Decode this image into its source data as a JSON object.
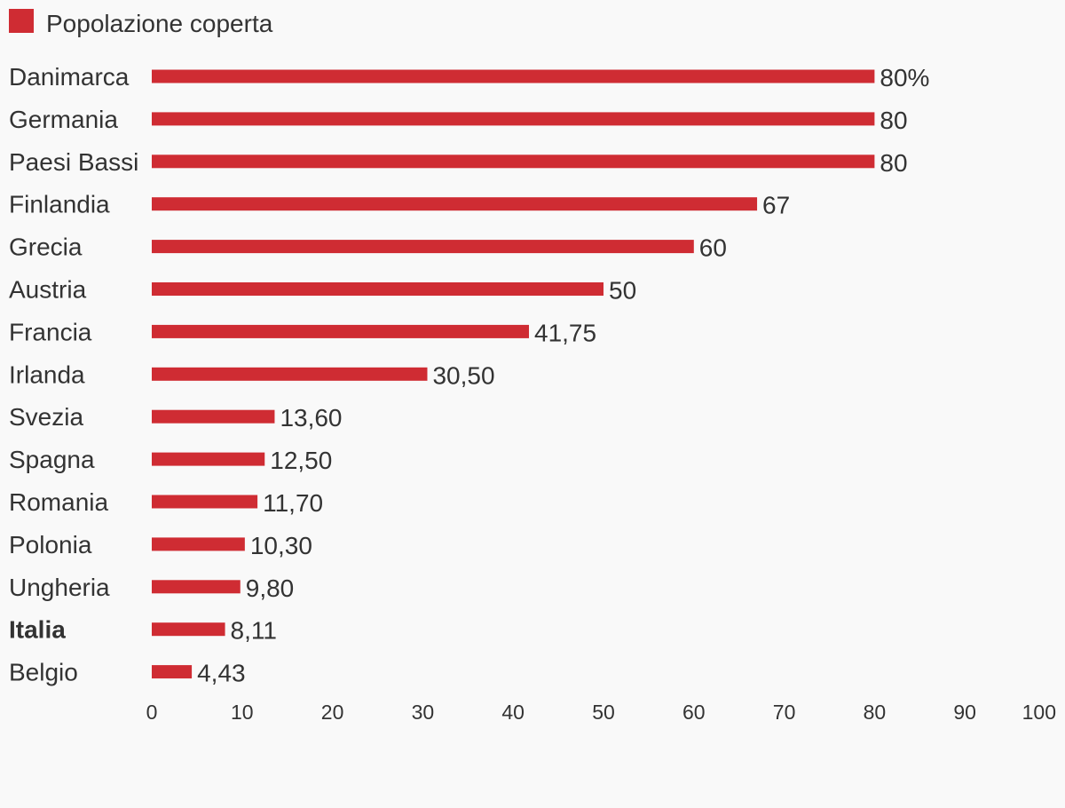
{
  "chart_data": {
    "type": "bar",
    "orientation": "horizontal",
    "categories": [
      "Danimarca",
      "Germania",
      "Paesi Bassi",
      "Finlandia",
      "Grecia",
      "Austria",
      "Francia",
      "Irlanda",
      "Svezia",
      "Spagna",
      "Romania",
      "Polonia",
      "Ungheria",
      "Italia",
      "Belgio"
    ],
    "highlighted_category": "Italia",
    "series": [
      {
        "name": "Popolazione coperta",
        "values": [
          80,
          80,
          80,
          67,
          60,
          50,
          41.75,
          30.5,
          13.6,
          12.5,
          11.7,
          10.3,
          9.8,
          8.11,
          4.43
        ],
        "labels": [
          "80%",
          "80",
          "80",
          "67",
          "60",
          "50",
          "41,75",
          "30,50",
          "13,60",
          "12,50",
          "11,70",
          "10,30",
          "9,80",
          "8,11",
          "4,43"
        ]
      }
    ],
    "xlim": [
      0,
      100
    ],
    "xticks": [
      0,
      10,
      20,
      30,
      40,
      50,
      60,
      70,
      80,
      90,
      100
    ],
    "xtick_labels": [
      "0",
      "10",
      "20",
      "30",
      "40",
      "50",
      "60",
      "70",
      "80",
      "90",
      "100"
    ],
    "grid": false,
    "legend_position": "top-left",
    "colors": {
      "bar": "#cf2c33",
      "text": "#333333",
      "background": "#f9f9f9"
    }
  }
}
